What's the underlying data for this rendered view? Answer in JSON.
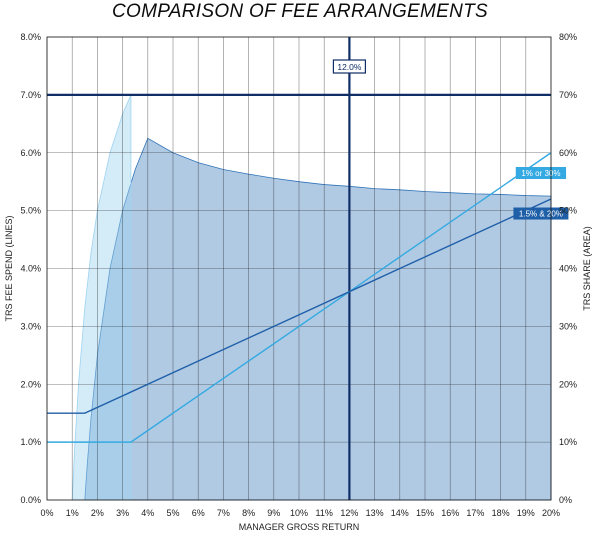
{
  "chart_data": {
    "type": "line",
    "title": "COMPARISON OF FEE ARRANGEMENTS",
    "xlabel": "MANAGER GROSS RETURN",
    "ylabel_left": "TRS FEE SPEND (LINES)",
    "ylabel_right": "TRS SHARE (AREA)",
    "xlim": [
      0,
      20
    ],
    "ylim_left": [
      0,
      8
    ],
    "ylim_right": [
      0,
      80
    ],
    "grid": true,
    "x_ticks": [
      "0%",
      "1%",
      "2%",
      "3%",
      "4%",
      "5%",
      "6%",
      "7%",
      "8%",
      "9%",
      "10%",
      "11%",
      "12%",
      "13%",
      "14%",
      "15%",
      "16%",
      "17%",
      "18%",
      "19%",
      "20%"
    ],
    "y_ticks_left": [
      "0.0%",
      "1.0%",
      "2.0%",
      "3.0%",
      "4.0%",
      "5.0%",
      "6.0%",
      "7.0%",
      "8.0%"
    ],
    "y_ticks_right": [
      "0%",
      "10%",
      "20%",
      "30%",
      "40%",
      "50%",
      "60%",
      "70%",
      "80%"
    ],
    "series": [
      {
        "name": "1% or 30%",
        "kind": "line",
        "axis": "left",
        "color": "#35a9e1",
        "x": [
          0,
          3.33,
          20
        ],
        "y": [
          1.0,
          1.0,
          6.0
        ]
      },
      {
        "name": "1.5% & 20%",
        "kind": "line",
        "axis": "left",
        "color": "#1f5fa8",
        "x": [
          0,
          1.5,
          20
        ],
        "y": [
          1.5,
          1.5,
          5.2
        ]
      },
      {
        "kind": "area",
        "axis": "right",
        "color": "#2f73b8",
        "x": [
          1.5,
          1.6,
          1.75,
          2,
          2.5,
          3,
          3.5,
          4,
          5,
          6,
          7,
          8,
          9,
          10,
          11,
          12,
          13,
          14,
          15,
          16,
          17,
          18,
          19,
          20
        ],
        "y": [
          0,
          6.3,
          14.3,
          25,
          40,
          50,
          57.1,
          62.5,
          60,
          58.3,
          57.1,
          56.3,
          55.6,
          55,
          54.5,
          54.2,
          53.8,
          53.6,
          53.3,
          53.1,
          52.9,
          52.8,
          52.6,
          52.5
        ]
      },
      {
        "kind": "area",
        "axis": "right",
        "color": "#9fd3f0",
        "x": [
          1,
          1.1,
          1.25,
          1.5,
          1.75,
          2,
          2.5,
          3,
          3.33
        ],
        "y": [
          0,
          9.1,
          20,
          33.3,
          42.9,
          50,
          60,
          66.7,
          70
        ]
      }
    ],
    "reference_lines": {
      "horizontal_left_value": 7.0,
      "vertical_x_value": 12,
      "vertical_label": "12.0%"
    },
    "legend_labels": [
      {
        "text": "1% or 30%",
        "series": 0
      },
      {
        "text": "1.5% & 20%",
        "series": 1
      }
    ]
  }
}
